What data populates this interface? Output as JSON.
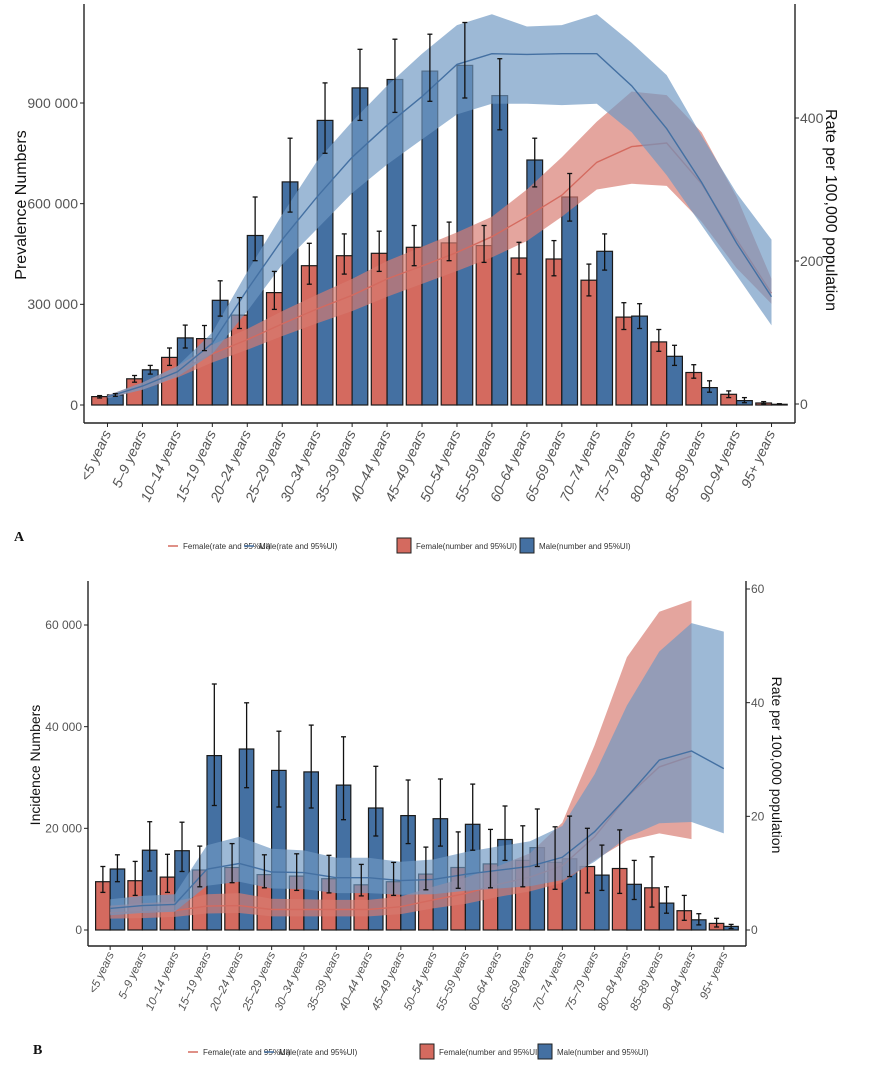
{
  "colors": {
    "female": "#D46A5F",
    "male": "#4470A2",
    "female_band": "#D77A70",
    "male_band": "#6E98C2",
    "error_bar": "#111111",
    "axis": "#222222"
  },
  "chart_data": [
    {
      "panel_label": "A",
      "type": "bar",
      "title": "",
      "xlabel": "",
      "ylabel": "Prevalence Numbers",
      "y2label": "Rate per 100,000 population",
      "ylim": [
        0,
        1150000
      ],
      "y2lim": [
        0,
        540
      ],
      "yticks": [
        0,
        300000,
        600000,
        900000
      ],
      "ytick_labels": [
        "0",
        "300 000",
        "600 000",
        "900 000"
      ],
      "y2ticks": [
        0,
        200,
        400
      ],
      "y2tick_labels": [
        "0",
        "200",
        "400"
      ],
      "grid": false,
      "legend_position": "bottom",
      "categories": [
        "<5 years",
        "5–9 years",
        "10–14 years",
        "15–19 years",
        "20–24 years",
        "25–29 years",
        "30–34 years",
        "35–39 years",
        "40–44 years",
        "45–49 years",
        "50–54 years",
        "55–59 years",
        "60–64 years",
        "65–69 years",
        "70–74 years",
        "75–79 years",
        "80–84 years",
        "85–89 years",
        "90–94 years",
        "95+ years"
      ],
      "bar_series": [
        {
          "name": "Female(number and 95%UI)",
          "values": [
            25000,
            78000,
            142000,
            198000,
            268000,
            335000,
            415000,
            445000,
            452000,
            470000,
            483000,
            475000,
            438000,
            435000,
            372000,
            262000,
            188000,
            97000,
            32000,
            6000
          ],
          "lower": [
            21000,
            68000,
            118000,
            162000,
            228000,
            285000,
            360000,
            390000,
            398000,
            415000,
            430000,
            425000,
            390000,
            385000,
            325000,
            225000,
            160000,
            80000,
            22000,
            3000
          ],
          "upper": [
            28000,
            88000,
            170000,
            237000,
            320000,
            398000,
            482000,
            510000,
            518000,
            535000,
            545000,
            535000,
            485000,
            490000,
            420000,
            305000,
            225000,
            120000,
            42000,
            10000
          ]
        },
        {
          "name": "Male(number and 95%UI)",
          "values": [
            30000,
            105000,
            200000,
            312000,
            505000,
            665000,
            848000,
            945000,
            970000,
            995000,
            1012000,
            922000,
            730000,
            620000,
            458000,
            265000,
            145000,
            52000,
            13000,
            2000
          ],
          "lower": [
            26000,
            92000,
            170000,
            265000,
            430000,
            575000,
            750000,
            848000,
            872000,
            905000,
            915000,
            820000,
            650000,
            548000,
            402000,
            228000,
            118000,
            38000,
            7000,
            1000
          ],
          "upper": [
            34000,
            118000,
            238000,
            370000,
            620000,
            795000,
            960000,
            1060000,
            1090000,
            1105000,
            1140000,
            1032000,
            795000,
            690000,
            510000,
            302000,
            178000,
            72000,
            22000,
            4000
          ]
        }
      ],
      "line_series": [
        {
          "name": "Female(rate and 95%UI)",
          "axis": "right",
          "values": [
            10,
            25,
            45,
            70,
            90,
            112,
            133,
            152,
            175,
            193,
            212,
            234,
            262,
            292,
            338,
            360,
            365,
            308,
            230,
            155
          ],
          "lower": [
            8,
            20,
            37,
            58,
            76,
            95,
            113,
            130,
            150,
            168,
            186,
            205,
            228,
            262,
            300,
            308,
            305,
            255,
            190,
            140
          ],
          "upper": [
            12,
            30,
            53,
            83,
            105,
            130,
            153,
            175,
            200,
            220,
            240,
            262,
            300,
            345,
            395,
            437,
            432,
            380,
            290,
            175
          ]
        },
        {
          "name": "Male(rate and 95%UI)",
          "axis": "right",
          "values": [
            10,
            25,
            45,
            85,
            160,
            230,
            290,
            345,
            390,
            430,
            475,
            490,
            489,
            490,
            490,
            445,
            385,
            310,
            225,
            150
          ],
          "lower": [
            8,
            20,
            38,
            70,
            130,
            195,
            245,
            295,
            335,
            370,
            405,
            420,
            420,
            418,
            420,
            380,
            320,
            250,
            180,
            110
          ],
          "upper": [
            12,
            30,
            53,
            100,
            185,
            265,
            340,
            395,
            445,
            490,
            530,
            545,
            528,
            530,
            545,
            505,
            460,
            375,
            295,
            230
          ]
        }
      ]
    },
    {
      "panel_label": "B",
      "type": "bar",
      "title": "",
      "xlabel": "",
      "ylabel": "Incidence Numbers",
      "y2label": "Rate per 100,000 population",
      "ylim": [
        0,
        70000
      ],
      "y2lim": [
        0,
        60
      ],
      "yticks": [
        0,
        20000,
        40000,
        60000
      ],
      "ytick_labels": [
        "0",
        "20 000",
        "40 000",
        "60 000"
      ],
      "y2ticks": [
        0,
        20,
        40,
        60
      ],
      "y2tick_labels": [
        "0",
        "20",
        "40",
        "60"
      ],
      "grid": false,
      "legend_position": "bottom",
      "categories": [
        "<5 years",
        "5–9 years",
        "10–14 years",
        "15–19 years",
        "20–24 years",
        "25–29 years",
        "30–34 years",
        "35–39 years",
        "40–44 years",
        "45–49 years",
        "50–54 years",
        "55–59 years",
        "60–64 years",
        "65–69 years",
        "70–74 years",
        "75–79 years",
        "80–84 years",
        "85–89 years",
        "90–94 years",
        "95+ years"
      ],
      "bar_series": [
        {
          "name": "Female(number and 95%UI)",
          "values": [
            9500,
            9700,
            10400,
            11800,
            12300,
            10900,
            10600,
            10100,
            8900,
            9500,
            11000,
            12300,
            13000,
            13700,
            13300,
            12500,
            12100,
            8300,
            3800,
            1300
          ],
          "lower": [
            7400,
            6800,
            7400,
            8500,
            9300,
            8300,
            7800,
            7300,
            6700,
            6800,
            7900,
            8200,
            8300,
            8500,
            8000,
            7300,
            7200,
            4500,
            1900,
            600
          ],
          "upper": [
            12500,
            13500,
            14900,
            16500,
            17000,
            14800,
            15000,
            14700,
            12900,
            13300,
            16300,
            19300,
            19800,
            20500,
            20300,
            20000,
            19700,
            14400,
            6800,
            2300
          ]
        },
        {
          "name": "Male(number and 95%UI)",
          "values": [
            12000,
            15700,
            15600,
            34300,
            35600,
            31400,
            31100,
            28500,
            24000,
            22500,
            21900,
            20800,
            17800,
            16200,
            14000,
            10800,
            9000,
            5300,
            2000,
            700
          ],
          "lower": [
            9500,
            11600,
            11500,
            24500,
            28000,
            24200,
            24000,
            21700,
            18500,
            17000,
            16500,
            15700,
            13700,
            12500,
            10500,
            7800,
            6000,
            3300,
            1000,
            300
          ],
          "upper": [
            14800,
            21300,
            21200,
            48400,
            44700,
            39100,
            40300,
            38000,
            32200,
            29500,
            29700,
            28700,
            24400,
            23800,
            22400,
            16700,
            13700,
            8500,
            3200,
            1100
          ]
        }
      ],
      "line_series": [
        {
          "name": "Female(rate and 95%UI)",
          "axis": "right",
          "values": [
            3.0,
            3.2,
            3.4,
            4.2,
            4.3,
            3.6,
            3.6,
            3.6,
            3.6,
            4.1,
            5.3,
            6.4,
            8.0,
            9.3,
            11.3,
            16.4,
            23.4,
            28.7,
            30.6,
            null
          ],
          "lower": [
            2.0,
            2.1,
            2.3,
            2.9,
            3.0,
            2.4,
            2.4,
            2.4,
            2.4,
            2.8,
            3.8,
            4.6,
            5.8,
            6.8,
            8.3,
            12.3,
            15.7,
            17.0,
            16.0,
            null
          ],
          "upper": [
            4.3,
            4.7,
            5.0,
            6.3,
            6.5,
            5.5,
            5.4,
            5.3,
            5.3,
            5.9,
            7.6,
            9.2,
            11.2,
            13.5,
            18.9,
            32.5,
            48.0,
            56.0,
            58.0,
            null
          ]
        },
        {
          "name": "Male(rate and 95%UI)",
          "axis": "right",
          "values": [
            3.8,
            4.3,
            4.5,
            10.7,
            11.7,
            10.2,
            10.1,
            9.2,
            9.2,
            8.7,
            8.9,
            9.8,
            10.5,
            11.2,
            12.8,
            17.3,
            23.4,
            29.9,
            31.5,
            28.4
          ],
          "lower": [
            2.6,
            3.0,
            3.2,
            7.8,
            8.5,
            7.3,
            7.2,
            6.5,
            6.5,
            6.2,
            6.3,
            6.9,
            7.3,
            7.7,
            8.8,
            12.0,
            16.3,
            18.8,
            19.0,
            17.0
          ],
          "upper": [
            5.4,
            6.0,
            6.3,
            14.9,
            16.4,
            14.3,
            14.0,
            12.7,
            12.7,
            12.0,
            12.4,
            13.7,
            14.7,
            15.6,
            18.3,
            27.4,
            39.5,
            49.0,
            54.0,
            52.5
          ]
        }
      ]
    }
  ],
  "legend": {
    "female_rate": "Female(rate and 95%UI)",
    "male_rate": "Male(rate and 95%UI)",
    "female_number": "Female(number and 95%UI)",
    "male_number": "Male(number and 95%UI)"
  }
}
